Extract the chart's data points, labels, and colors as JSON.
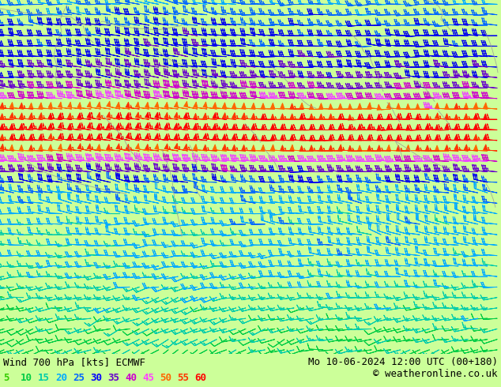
{
  "title_left": "Wind 700 hPa [kts] ECMWF",
  "title_right": "Mo 10-06-2024 12:00 UTC (00+180)",
  "copyright": "© weatheronline.co.uk",
  "bg_color": "#ccff99",
  "legend_values": [
    5,
    10,
    15,
    20,
    25,
    30,
    35,
    40,
    45,
    50,
    55,
    60
  ],
  "legend_colors": [
    "#33cc00",
    "#00cc44",
    "#00ccaa",
    "#00aaff",
    "#0066ff",
    "#0000ff",
    "#6600cc",
    "#cc00cc",
    "#ff44ff",
    "#ff6600",
    "#ff3300",
    "#ff0000"
  ],
  "font_size_title": 9,
  "font_size_legend": 9,
  "bottom_bg": "#ffffff"
}
